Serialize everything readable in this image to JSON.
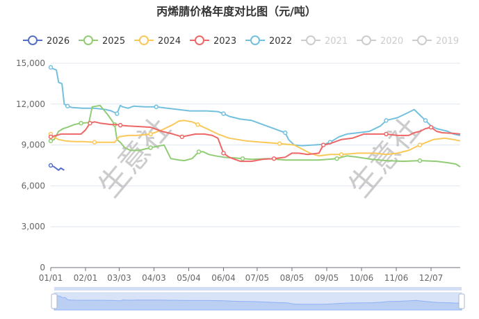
{
  "chart_data": {
    "type": "line",
    "title": "丙烯腈价格年度对比图（元/吨）",
    "xlabel": "",
    "ylabel": "",
    "ylim": [
      0,
      15000
    ],
    "yticks": [
      0,
      3000,
      6000,
      9000,
      12000,
      15000
    ],
    "ytick_labels": [
      "0",
      "3,000",
      "6,000",
      "9,000",
      "12,000",
      "15,000"
    ],
    "xticks": [
      1,
      32,
      62,
      93,
      124,
      155,
      185,
      216,
      247,
      278,
      309,
      340
    ],
    "xtick_labels": [
      "01/01",
      "02/01",
      "03/03",
      "04/03",
      "05/04",
      "06/04",
      "07/05",
      "08/05",
      "09/05",
      "10/06",
      "11/06",
      "12/07"
    ],
    "xlim": [
      1,
      366
    ],
    "grid": "horizontal",
    "legend_position": "top",
    "watermark": "生意社",
    "series": [
      {
        "name": "2026",
        "color": "#5470c6",
        "active": true,
        "x": [
          1,
          4,
          8,
          10,
          13
        ],
        "y": [
          7500,
          7400,
          7150,
          7300,
          7150
        ]
      },
      {
        "name": "2025",
        "color": "#91cc75",
        "active": true,
        "x": [
          1,
          4,
          8,
          12,
          16,
          22,
          28,
          35,
          38,
          45,
          48,
          52,
          58,
          60,
          63,
          67,
          72,
          80,
          90,
          102,
          108,
          115,
          120,
          127,
          133,
          137,
          142,
          148,
          155,
          165,
          172,
          180,
          195,
          210,
          225,
          240,
          256,
          265,
          275,
          287,
          300,
          315,
          330,
          345,
          355,
          362,
          366
        ],
        "y": [
          9300,
          9400,
          10000,
          10200,
          10300,
          10500,
          10600,
          10650,
          11800,
          11900,
          11600,
          11200,
          10500,
          9400,
          9200,
          8800,
          8600,
          8600,
          8800,
          9000,
          8000,
          7900,
          7850,
          8000,
          8500,
          8500,
          8300,
          8200,
          8100,
          8050,
          8000,
          7950,
          8000,
          7900,
          7900,
          7900,
          8000,
          8200,
          8100,
          7950,
          7850,
          7800,
          7850,
          7800,
          7700,
          7600,
          7400
        ]
      },
      {
        "name": "2024",
        "color": "#fac858",
        "active": true,
        "x": [
          1,
          3,
          8,
          14,
          22,
          30,
          40,
          50,
          58,
          62,
          70,
          78,
          90,
          100,
          110,
          115,
          120,
          127,
          132,
          140,
          150,
          160,
          175,
          190,
          205,
          218,
          225,
          232,
          240,
          250,
          260,
          275,
          290,
          300,
          310,
          320,
          330,
          342,
          352,
          360,
          366
        ],
        "y": [
          9800,
          9600,
          9400,
          9300,
          9250,
          9250,
          9200,
          9200,
          9200,
          9600,
          9700,
          9700,
          9800,
          10100,
          10500,
          10750,
          10800,
          10700,
          10500,
          10200,
          9800,
          9500,
          9300,
          9200,
          9100,
          9000,
          8700,
          8400,
          8200,
          8300,
          8300,
          8400,
          8400,
          8300,
          8400,
          8600,
          9000,
          9400,
          9500,
          9400,
          9300
        ]
      },
      {
        "name": "2023",
        "color": "#ee6666",
        "active": true,
        "x": [
          1,
          6,
          10,
          20,
          28,
          32,
          36,
          40,
          45,
          50,
          55,
          60,
          63,
          70,
          80,
          90,
          100,
          110,
          118,
          124,
          130,
          138,
          145,
          150,
          155,
          160,
          165,
          170,
          180,
          190,
          200,
          210,
          216,
          222,
          230,
          240,
          244,
          250,
          260,
          270,
          280,
          290,
          300,
          310,
          320,
          325,
          330,
          335,
          340,
          345,
          350,
          360,
          366
        ],
        "y": [
          9600,
          9700,
          9800,
          9800,
          9800,
          10100,
          10600,
          10700,
          10600,
          10550,
          10500,
          10500,
          10450,
          10400,
          10350,
          10300,
          10000,
          9800,
          9600,
          9700,
          9800,
          9800,
          9700,
          9500,
          8400,
          8100,
          7950,
          7800,
          7800,
          7950,
          8000,
          8100,
          8400,
          8400,
          8300,
          8400,
          9000,
          9100,
          9400,
          9500,
          9800,
          9800,
          9800,
          9700,
          9700,
          9900,
          10000,
          10200,
          10300,
          10000,
          9900,
          9850,
          9800
        ]
      },
      {
        "name": "2022",
        "color": "#73c0de",
        "active": true,
        "x": [
          1,
          3,
          6,
          8,
          11,
          13,
          16,
          20,
          30,
          40,
          50,
          55,
          60,
          63,
          65,
          70,
          75,
          85,
          95,
          105,
          115,
          125,
          140,
          150,
          155,
          160,
          170,
          180,
          190,
          200,
          210,
          213,
          218,
          225,
          235,
          245,
          250,
          258,
          265,
          275,
          285,
          295,
          300,
          310,
          315,
          320,
          325,
          330,
          335,
          340,
          345,
          355,
          360,
          366
        ],
        "y": [
          14700,
          14600,
          14500,
          13600,
          13500,
          12000,
          11850,
          11750,
          11700,
          11700,
          11600,
          11500,
          11300,
          11900,
          11800,
          11700,
          11850,
          11800,
          11800,
          11700,
          11600,
          11500,
          11500,
          11450,
          11300,
          11100,
          10900,
          10800,
          10500,
          10200,
          9900,
          9400,
          9000,
          8950,
          9000,
          9050,
          9200,
          9600,
          9800,
          9900,
          10000,
          10400,
          10800,
          11000,
          11200,
          11400,
          11600,
          11200,
          10800,
          10400,
          10200,
          10000,
          9800,
          9700
        ]
      },
      {
        "name": "2021",
        "color": "#cccccc",
        "active": false,
        "x": [],
        "y": []
      },
      {
        "name": "2020",
        "color": "#cccccc",
        "active": false,
        "x": [],
        "y": []
      },
      {
        "name": "2019",
        "color": "#cccccc",
        "active": false,
        "x": [],
        "y": []
      }
    ]
  }
}
